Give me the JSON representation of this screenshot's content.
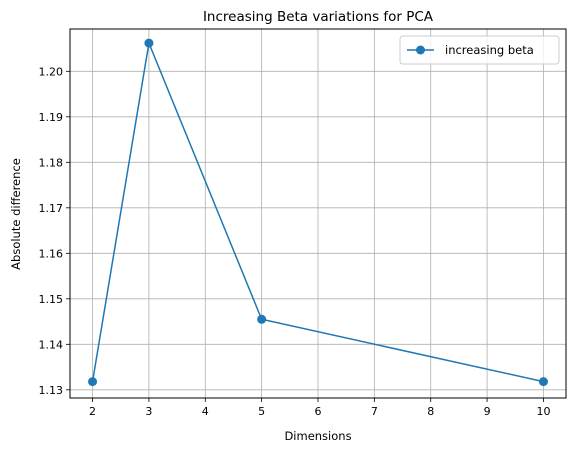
{
  "chart_data": {
    "type": "line",
    "title": "Increasing Beta variations for PCA",
    "xlabel": "Dimensions",
    "ylabel": "Absolute difference",
    "xlim": [
      1.6,
      10.4
    ],
    "ylim": [
      1.1282,
      1.2093
    ],
    "xticks": [
      2,
      3,
      4,
      5,
      6,
      7,
      8,
      9,
      10
    ],
    "yticks": [
      1.13,
      1.14,
      1.15,
      1.16,
      1.17,
      1.18,
      1.19,
      1.2
    ],
    "ytick_labels": [
      "1.13",
      "1.14",
      "1.15",
      "1.16",
      "1.17",
      "1.18",
      "1.19",
      "1.20"
    ],
    "grid": true,
    "legend_position": "top-right",
    "series": [
      {
        "name": "increasing beta",
        "color": "#1f77b4",
        "marker": "circle",
        "x": [
          2,
          3,
          5,
          10
        ],
        "y": [
          1.1318,
          1.2062,
          1.1455,
          1.1318
        ]
      }
    ]
  }
}
